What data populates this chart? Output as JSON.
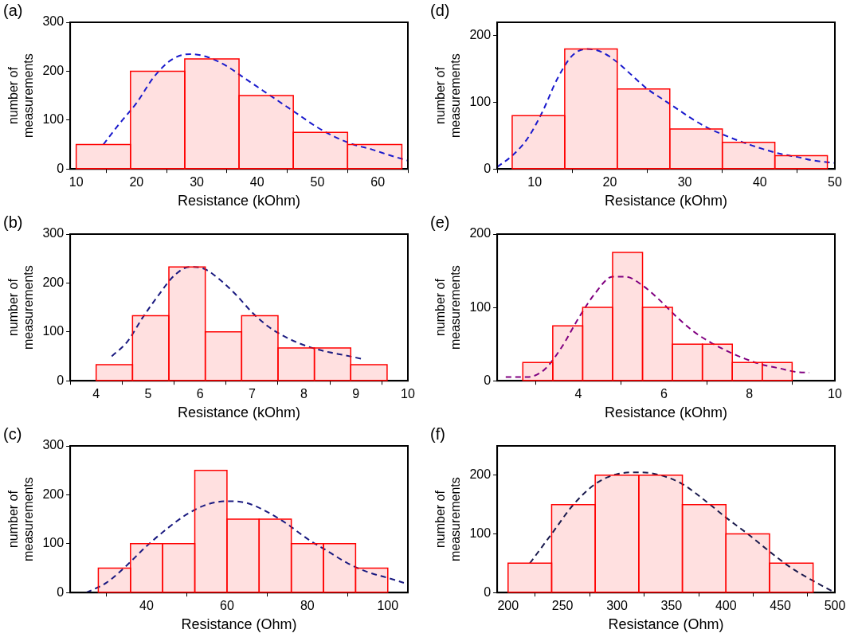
{
  "chart_data": [
    {
      "type": "histogram",
      "title": "(a)",
      "xlabel": "Resistance (kOhm)",
      "ylabel": "number of measurements",
      "xlim": [
        9,
        65
      ],
      "xticks": [
        10,
        20,
        30,
        40,
        50,
        60
      ],
      "ylim": [
        0,
        300
      ],
      "yticks": [
        0,
        100,
        200,
        300
      ],
      "color": "#ff0000",
      "bins": [
        10,
        19,
        28,
        37,
        46,
        55,
        64
      ],
      "values": [
        50,
        200,
        225,
        150,
        75,
        50
      ],
      "series": [
        {
          "type": "line",
          "color": "#1a1acc",
          "line_style": "dashed",
          "marker": "none",
          "x": [
            14.5,
            17,
            20,
            23,
            26,
            29,
            32,
            35,
            38,
            41,
            44,
            47,
            50,
            53,
            56,
            59,
            62,
            65
          ],
          "values": [
            50,
            90,
            135,
            190,
            225,
            235,
            228,
            210,
            185,
            160,
            135,
            110,
            85,
            65,
            50,
            40,
            28,
            17
          ]
        }
      ]
    },
    {
      "type": "histogram",
      "title": "(b)",
      "xlabel": "Resistance (kOhm)",
      "ylabel": "number of measurements",
      "xlim": [
        3.5,
        10
      ],
      "xticks": [
        4,
        5,
        6,
        7,
        8,
        9,
        10
      ],
      "ylim": [
        0,
        300
      ],
      "yticks": [
        0,
        100,
        200,
        300
      ],
      "color": "#ff0000",
      "bins": [
        4,
        4.7,
        5.4,
        6.1,
        6.8,
        7.5,
        8.2,
        8.9,
        9.6
      ],
      "values": [
        33,
        133,
        233,
        100,
        133,
        67,
        67,
        33
      ],
      "series": [
        {
          "type": "line",
          "color": "#1a1a80",
          "line_style": "dashed",
          "marker": "none",
          "x": [
            4.3,
            4.6,
            4.9,
            5.2,
            5.5,
            5.8,
            6.1,
            6.4,
            6.7,
            7,
            7.3,
            7.6,
            7.9,
            8.2,
            8.5,
            8.8,
            9.1
          ],
          "values": [
            50,
            80,
            130,
            175,
            215,
            233,
            228,
            205,
            175,
            140,
            112,
            92,
            77,
            66,
            58,
            52,
            45
          ]
        }
      ]
    },
    {
      "type": "histogram",
      "title": "(c)",
      "xlabel": "Resistance (Ohm)",
      "ylabel": "number of measurements",
      "xlim": [
        21,
        105
      ],
      "xticks": [
        40,
        60,
        80,
        100
      ],
      "ylim": [
        0,
        300
      ],
      "yticks": [
        0,
        100,
        200,
        300
      ],
      "color": "#ff0000",
      "bins": [
        28,
        36,
        44,
        52,
        60,
        68,
        76,
        84,
        92,
        100
      ],
      "values": [
        50,
        100,
        100,
        250,
        150,
        150,
        100,
        100,
        50
      ],
      "series": [
        {
          "type": "line",
          "color": "#1a1a80",
          "line_style": "dashed",
          "marker": "none",
          "x": [
            25,
            30,
            35,
            40,
            45,
            50,
            55,
            60,
            65,
            70,
            75,
            80,
            85,
            90,
            95,
            100,
            104
          ],
          "values": [
            0,
            20,
            55,
            95,
            130,
            160,
            180,
            187,
            183,
            165,
            140,
            110,
            85,
            60,
            42,
            30,
            20
          ]
        }
      ]
    },
    {
      "type": "histogram",
      "title": "(d)",
      "xlabel": "Resistance (kOhm)",
      "ylabel": "number of measurements",
      "xlim": [
        5,
        50
      ],
      "xticks": [
        10,
        20,
        30,
        40,
        50
      ],
      "ylim": [
        0,
        220
      ],
      "yticks": [
        0,
        100,
        200
      ],
      "color": "#ff0000",
      "bins": [
        7,
        14,
        21,
        28,
        35,
        42,
        49
      ],
      "values": [
        80,
        180,
        120,
        60,
        40,
        20
      ],
      "series": [
        {
          "type": "line",
          "color": "#1a1acc",
          "line_style": "dashed",
          "marker": "none",
          "x": [
            5,
            7,
            9,
            11,
            13,
            15,
            17,
            19,
            21,
            23,
            25,
            27,
            29,
            31,
            33,
            35,
            37,
            39,
            41,
            43,
            45,
            47,
            50
          ],
          "values": [
            3,
            20,
            45,
            85,
            135,
            170,
            180,
            175,
            160,
            140,
            120,
            105,
            90,
            75,
            62,
            52,
            43,
            35,
            28,
            22,
            18,
            13,
            9
          ]
        }
      ]
    },
    {
      "type": "histogram",
      "title": "(e)",
      "xlabel": "Resistance (kOhm)",
      "ylabel": "number of measurements",
      "xlim": [
        2.1,
        10
      ],
      "xticks": [
        4,
        6,
        8,
        10
      ],
      "ylim": [
        0,
        200
      ],
      "yticks": [
        0,
        100,
        200
      ],
      "color": "#ff0000",
      "bins": [
        2.7,
        3.4,
        4.1,
        4.8,
        5.5,
        6.2,
        6.9,
        7.6,
        8.3,
        9
      ],
      "values": [
        25,
        75,
        100,
        175,
        100,
        50,
        50,
        25,
        25
      ],
      "series": [
        {
          "type": "line",
          "color": "#800080",
          "line_style": "dashed",
          "marker": "none",
          "x": [
            2.3,
            2.8,
            3.2,
            3.6,
            4,
            4.4,
            4.8,
            5.1,
            5.5,
            5.9,
            6.3,
            6.7,
            7.1,
            7.5,
            7.9,
            8.3,
            8.7,
            9.1,
            9.4
          ],
          "values": [
            5,
            5,
            15,
            45,
            85,
            120,
            142,
            142,
            130,
            110,
            87,
            67,
            52,
            40,
            30,
            22,
            17,
            12,
            11
          ]
        }
      ]
    },
    {
      "type": "histogram",
      "title": "(f)",
      "xlabel": "Resistance (Ohm)",
      "ylabel": "number of measurements",
      "xlim": [
        190,
        500
      ],
      "xticks": [
        200,
        250,
        300,
        350,
        400,
        450,
        500
      ],
      "ylim": [
        0,
        250
      ],
      "yticks": [
        0,
        100,
        200
      ],
      "color": "#ff0000",
      "bins": [
        200,
        240,
        280,
        320,
        360,
        400,
        440,
        480
      ],
      "values": [
        50,
        150,
        200,
        200,
        150,
        100,
        50
      ],
      "series": [
        {
          "type": "line",
          "color": "#1a1a4d",
          "line_style": "dashed",
          "marker": "none",
          "x": [
            220,
            240,
            260,
            280,
            300,
            320,
            340,
            360,
            380,
            400,
            420,
            440,
            460,
            480,
            500
          ],
          "values": [
            50,
            100,
            150,
            185,
            202,
            205,
            200,
            185,
            158,
            128,
            100,
            70,
            42,
            20,
            0
          ]
        }
      ]
    }
  ]
}
